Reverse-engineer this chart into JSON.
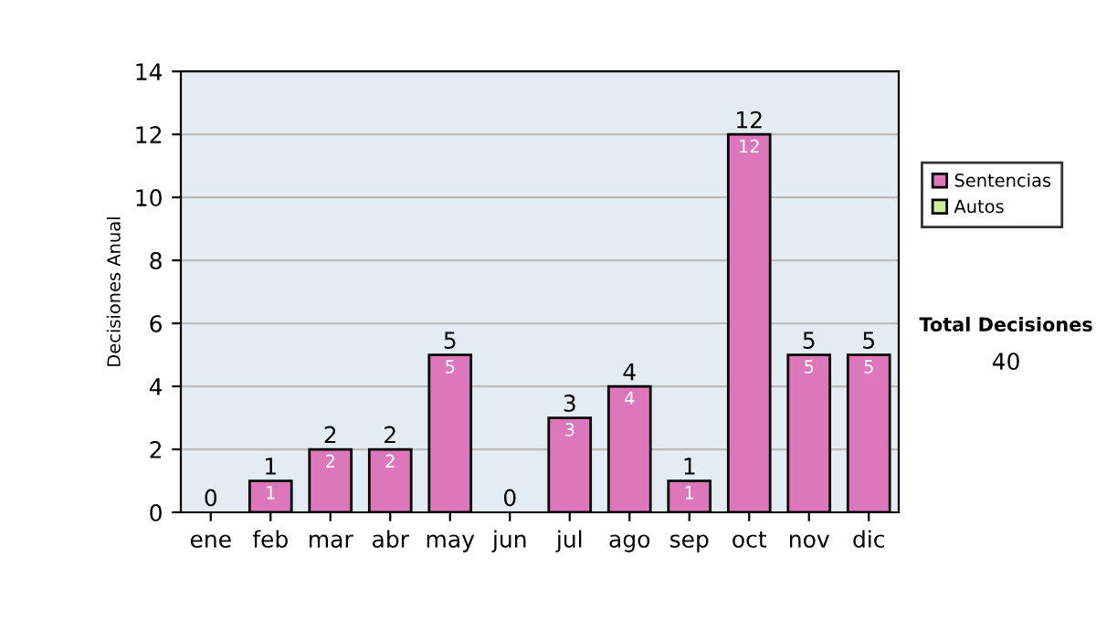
{
  "chart_data": {
    "type": "bar",
    "ylabel": "Decisiones Anual",
    "categories": [
      "ene",
      "feb",
      "mar",
      "abr",
      "may",
      "jun",
      "jul",
      "ago",
      "sep",
      "oct",
      "nov",
      "dic"
    ],
    "series": [
      {
        "name": "Sentencias",
        "color": "#dd77bb",
        "values": [
          0,
          1,
          2,
          2,
          5,
          0,
          3,
          4,
          1,
          12,
          5,
          5
        ],
        "value_labels": [
          null,
          "1",
          "2",
          "2",
          "5",
          null,
          "3",
          "4",
          "1",
          "12",
          "5",
          "5"
        ]
      },
      {
        "name": "Autos",
        "color": "#ccee99",
        "values": [
          0,
          0,
          0,
          0,
          0,
          0,
          0,
          0,
          0,
          0,
          0,
          0
        ]
      }
    ],
    "stacked": true,
    "totals": [
      "0",
      "1",
      "2",
      "2",
      "5",
      "0",
      "3",
      "4",
      "1",
      "12",
      "5",
      "5"
    ],
    "ylim": [
      0,
      14
    ],
    "yticks": [
      0,
      2,
      4,
      6,
      8,
      10,
      12,
      14
    ],
    "grid": "y",
    "legend": "right",
    "annotations": [
      "Total Decisiones",
      "40"
    ]
  }
}
